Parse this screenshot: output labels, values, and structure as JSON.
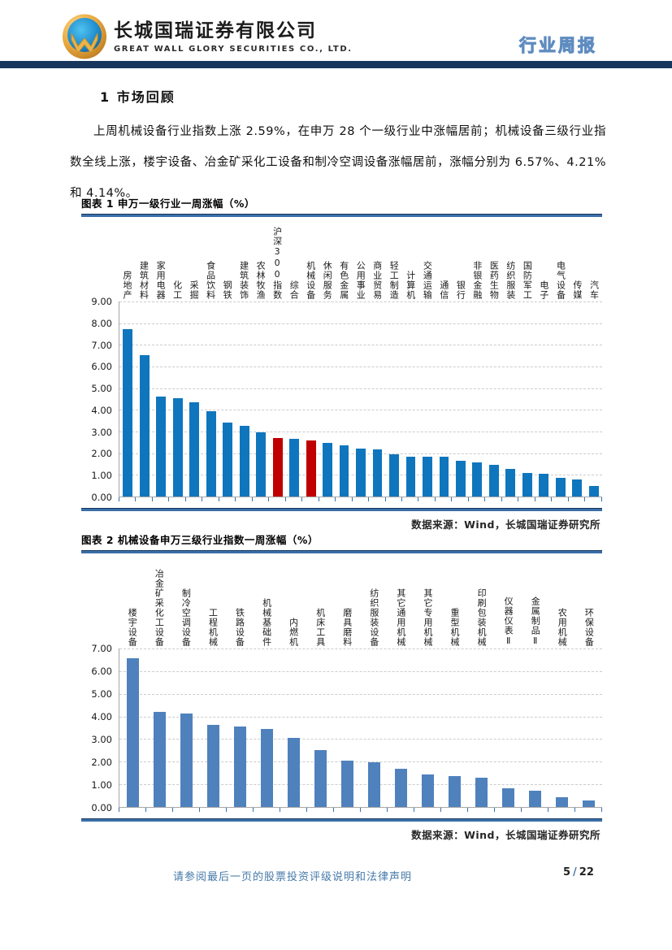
{
  "header": {
    "company_cn": "长城国瑞证券有限公司",
    "company_en": "GREAT WALL GLORY SECURITIES CO., LTD.",
    "report_type": "行业周报"
  },
  "section": {
    "title": "1 市场回顾",
    "paragraph": "上周机械设备行业指数上涨 2.59%，在申万 28 个一级行业中涨幅居前；机械设备三级行业指数全线上涨，楼宇设备、冶金矿采化工设备和制冷空调设备涨幅居前，涨幅分别为 6.57%、4.21%和 4.14%。"
  },
  "figure1": {
    "title": "图表 1 申万一级行业一周涨幅（%）",
    "source": "数据来源：Wind，长城国瑞证券研究所"
  },
  "figure2": {
    "title": "图表 2 机械设备申万三级行业指数一周涨幅（%）",
    "source": "数据来源：Wind，长城国瑞证券研究所"
  },
  "footer": {
    "disclaimer": "请参阅最后一页的股票投资评级说明和法律声明",
    "page": "5",
    "page_sep": "/",
    "total": "22"
  },
  "colors": {
    "bar_blue_chart1": "#0f76be",
    "bar_red_highlight": "#c00000",
    "bar_blue_chart2": "#4f81bd",
    "rule_blue": "#3a6ea8",
    "header_bar_navy": "#17365d",
    "accent_text_blue": "#4579a8",
    "xtick_blue": "#2e74b5"
  },
  "chart_data": [
    {
      "type": "bar",
      "title": "申万一级行业一周涨幅（%）",
      "categories": [
        "房地产",
        "建筑材料",
        "家用电器",
        "化工",
        "采掘",
        "食品饮料",
        "钢铁",
        "建筑装饰",
        "农林牧渔",
        "沪深300指数",
        "综合",
        "机械设备",
        "休闲服务",
        "有色金属",
        "公用事业",
        "商业贸易",
        "轻工制造",
        "计算机",
        "交通运输",
        "通信",
        "银行",
        "非银金融",
        "医药生物",
        "纺织服装",
        "国防军工",
        "电子",
        "电气设备",
        "传媒",
        "汽车"
      ],
      "values": [
        7.72,
        6.52,
        4.62,
        4.53,
        4.35,
        3.92,
        3.42,
        3.26,
        2.97,
        2.71,
        2.67,
        2.59,
        2.48,
        2.35,
        2.2,
        2.16,
        1.96,
        1.85,
        1.84,
        1.83,
        1.65,
        1.57,
        1.47,
        1.27,
        1.1,
        1.05,
        0.87,
        0.78,
        0.48
      ],
      "highlight_indices": [
        9,
        11
      ],
      "bar_color": "#0f76be",
      "highlight_color": "#c00000",
      "ylim": [
        0,
        9
      ],
      "ytick_step": 1,
      "ytick_labels": [
        "0.00",
        "1.00",
        "2.00",
        "3.00",
        "4.00",
        "5.00",
        "6.00",
        "7.00",
        "8.00",
        "9.00"
      ],
      "grid": true,
      "legend": null
    },
    {
      "type": "bar",
      "title": "机械设备申万三级行业指数一周涨幅（%）",
      "categories": [
        "楼宇设备",
        "冶金矿采化工设备",
        "制冷空调设备",
        "工程机械",
        "铁路设备",
        "机械基础件",
        "内燃机",
        "机床工具",
        "磨具磨料",
        "纺织服装设备",
        "其它通用机械",
        "其它专用机械",
        "重型机械",
        "印刷包装机械",
        "仪器仪表Ⅱ",
        "金属制品Ⅱ",
        "农用机械",
        "环保设备"
      ],
      "values": [
        6.57,
        4.21,
        4.14,
        3.63,
        3.57,
        3.45,
        3.04,
        2.5,
        2.03,
        1.96,
        1.7,
        1.42,
        1.38,
        1.31,
        0.84,
        0.73,
        0.42,
        0.3
      ],
      "highlight_indices": [],
      "bar_color": "#4f81bd",
      "highlight_color": "#c00000",
      "ylim": [
        0,
        7
      ],
      "ytick_step": 1,
      "ytick_labels": [
        "0.00",
        "1.00",
        "2.00",
        "3.00",
        "4.00",
        "5.00",
        "6.00",
        "7.00"
      ],
      "grid": true,
      "legend": null
    }
  ]
}
